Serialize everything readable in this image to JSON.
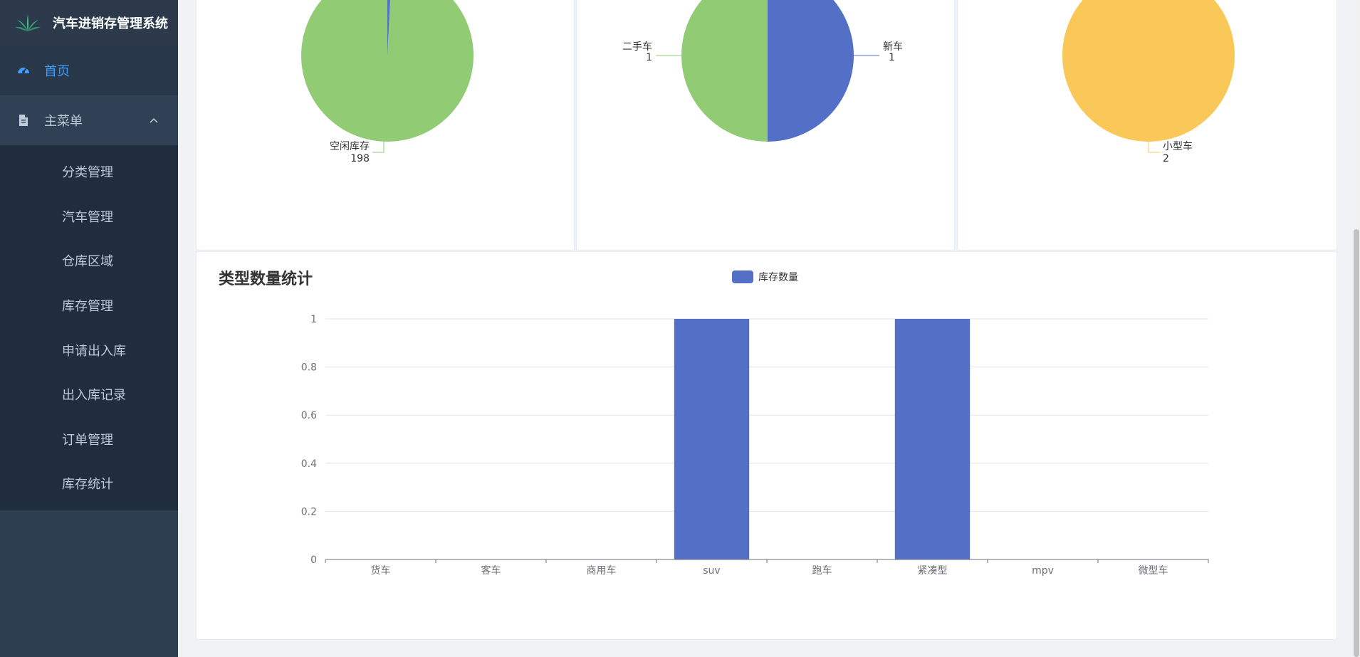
{
  "app": {
    "title": "汽车进销存管理系统"
  },
  "sidebar": {
    "home": "首页",
    "main_menu": "主菜单",
    "items": [
      {
        "label": "分类管理"
      },
      {
        "label": "汽车管理"
      },
      {
        "label": "仓库区域"
      },
      {
        "label": "库存管理"
      },
      {
        "label": "申请出入库"
      },
      {
        "label": "出入库记录"
      },
      {
        "label": "订单管理"
      },
      {
        "label": "库存统计"
      }
    ]
  },
  "pies": {
    "stock": {
      "label": "空闲库存",
      "value": "198"
    },
    "condition": {
      "left": {
        "label": "二手车",
        "value": "1"
      },
      "right": {
        "label": "新车",
        "value": "1"
      }
    },
    "size": {
      "label": "小型车",
      "value": "2"
    }
  },
  "colors": {
    "blue": "#5470c6",
    "green": "#91cc75",
    "yellow": "#fac858",
    "accent": "#409eff"
  },
  "bar_chart": {
    "title": "类型数量统计"
  },
  "chart_data": {
    "type": "bar",
    "title": "类型数量统计",
    "categories": [
      "货车",
      "客车",
      "商用车",
      "suv",
      "跑车",
      "紧凑型",
      "mpv",
      "微型车"
    ],
    "series": [
      {
        "name": "库存数量",
        "values": [
          0,
          0,
          0,
          1,
          0,
          1,
          0,
          0
        ]
      }
    ],
    "yticks": [
      "0",
      "0.2",
      "0.4",
      "0.6",
      "0.8",
      "1"
    ],
    "ylim": [
      0,
      1
    ],
    "legend": "top-center",
    "grid": true
  }
}
